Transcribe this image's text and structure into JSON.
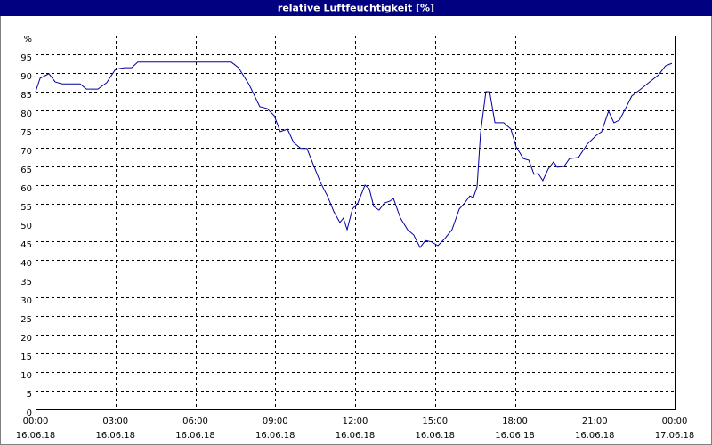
{
  "chart_data": {
    "type": "line",
    "title": "relative Luftfeuchtigkeit [%]",
    "series": [
      {
        "color": "#0000a0",
        "x": [
          0,
          0.17,
          0.5,
          0.74,
          1.0,
          1.67,
          1.91,
          2.34,
          2.67,
          3.0,
          3.34,
          3.61,
          3.84,
          7.35,
          7.62,
          8.02,
          8.42,
          8.69,
          8.96,
          9.19,
          9.46,
          9.69,
          9.96,
          10.19,
          10.43,
          10.7,
          10.96,
          11.2,
          11.43,
          11.56,
          11.7,
          11.9,
          12.1,
          12.37,
          12.53,
          12.7,
          12.9,
          13.1,
          13.3,
          13.44,
          13.7,
          13.97,
          14.2,
          14.44,
          14.64,
          14.87,
          15.11,
          15.37,
          15.64,
          15.91,
          16.11,
          16.31,
          16.44,
          16.58,
          16.71,
          16.91,
          17.05,
          17.25,
          17.58,
          17.85,
          18.05,
          18.32,
          18.52,
          18.72,
          18.88,
          19.05,
          19.25,
          19.45,
          19.59,
          19.85,
          20.05,
          20.39,
          20.72,
          21.06,
          21.26,
          21.52,
          21.72,
          21.93,
          22.19,
          22.39,
          22.73,
          23.06,
          23.4,
          23.66,
          23.9
        ],
        "values": [
          85,
          88.6,
          89.8,
          87.6,
          87.1,
          87.1,
          85.7,
          85.7,
          87.4,
          91,
          91.4,
          91.4,
          92.9,
          92.9,
          91.4,
          86.9,
          81,
          80.5,
          78.6,
          74.3,
          75,
          71.4,
          69.8,
          69.8,
          65.5,
          60.7,
          57.1,
          52.9,
          50,
          51.2,
          48.1,
          53.6,
          55.2,
          60,
          59,
          54.3,
          53.3,
          55.2,
          55.7,
          56.4,
          51.2,
          48.1,
          46.7,
          43.3,
          45.2,
          44.8,
          43.8,
          45.7,
          48.1,
          53.6,
          55.2,
          57.1,
          56.7,
          59.5,
          73.8,
          85,
          85,
          76.7,
          76.7,
          75,
          70.2,
          67.1,
          66.7,
          62.9,
          63.1,
          61.2,
          64.3,
          66.2,
          64.8,
          65,
          67.1,
          67.4,
          71,
          73.3,
          74.3,
          79.8,
          76.7,
          77.4,
          81,
          83.8,
          85.7,
          87.6,
          89.5,
          91.9,
          92.6
        ]
      }
    ],
    "xlim": [
      0,
      24
    ],
    "ylim": [
      0,
      100
    ],
    "xticks": [
      {
        "value": 0,
        "label": [
          "00:00",
          "16.06.18"
        ]
      },
      {
        "value": 3,
        "label": [
          "03:00",
          "16.06.18"
        ]
      },
      {
        "value": 6,
        "label": [
          "06:00",
          "16.06.18"
        ]
      },
      {
        "value": 9,
        "label": [
          "09:00",
          "16.06.18"
        ]
      },
      {
        "value": 12,
        "label": [
          "12:00",
          "16.06.18"
        ]
      },
      {
        "value": 15,
        "label": [
          "15:00",
          "16.06.18"
        ]
      },
      {
        "value": 18,
        "label": [
          "18:00",
          "16.06.18"
        ]
      },
      {
        "value": 21,
        "label": [
          "21:00",
          "16.06.18"
        ]
      },
      {
        "value": 24,
        "label": [
          "00:00",
          "17.06.18"
        ]
      }
    ],
    "yticks": [
      0,
      5,
      10,
      15,
      20,
      25,
      30,
      35,
      40,
      45,
      50,
      55,
      60,
      65,
      70,
      75,
      80,
      85,
      90,
      95,
      {
        "value": 100,
        "label": "%"
      }
    ],
    "grid": true
  }
}
